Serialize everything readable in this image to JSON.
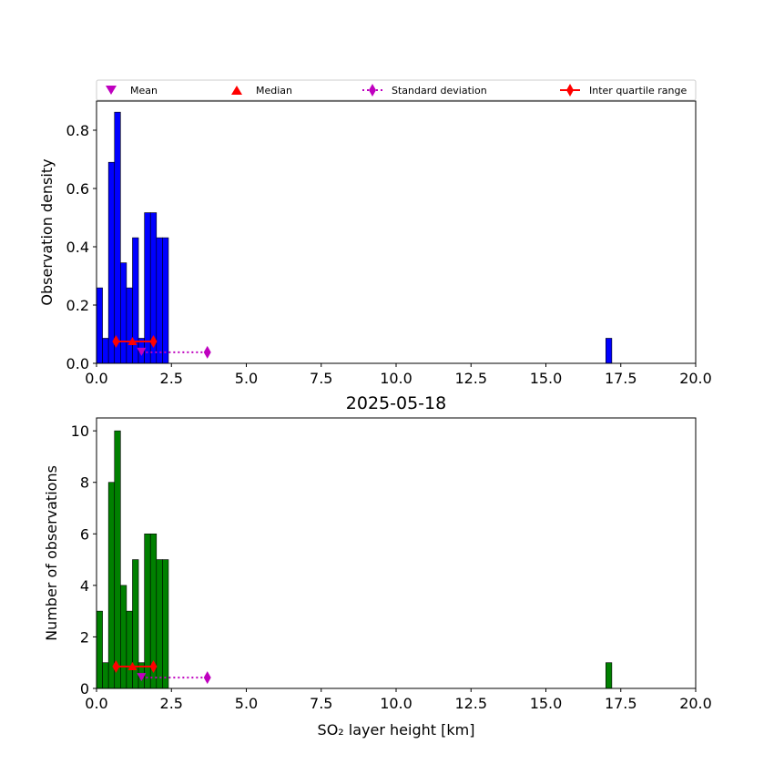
{
  "colors": {
    "top_bars": "#0000ff",
    "bottom_bars": "#008000",
    "bar_edge": "#000000",
    "mean": "#bf00bf",
    "median": "#ff0000",
    "std": "#bf00bf",
    "iqr": "#ff0000"
  },
  "legend": {
    "mean": "Mean",
    "median": "Median",
    "std": "Standard deviation",
    "iqr": "Inter quartile range"
  },
  "chart_data": [
    {
      "type": "bar",
      "panel": "density",
      "title": "",
      "xlabel": "",
      "ylabel": "Observation density",
      "xlim": [
        0,
        20
      ],
      "ylim": [
        0,
        0.9
      ],
      "xticks": [
        "0.0",
        "2.5",
        "5.0",
        "7.5",
        "10.0",
        "12.5",
        "15.0",
        "17.5",
        "20.0"
      ],
      "yticks": [
        "0.0",
        "0.2",
        "0.4",
        "0.6",
        "0.8"
      ],
      "bin_edges": [
        0.0,
        0.2,
        0.4,
        0.6,
        0.8,
        1.0,
        1.2,
        1.4,
        1.6,
        1.8,
        2.0,
        2.2,
        2.4
      ],
      "values": [
        0.259,
        0.086,
        0.69,
        0.862,
        0.345,
        0.259,
        0.431,
        0.086,
        0.517,
        0.517,
        0.431,
        0.431
      ],
      "outlier_bins": [
        {
          "x0": 17.0,
          "x1": 17.2,
          "value": 0.086
        }
      ],
      "stats": {
        "mean": 1.5,
        "median": 1.2,
        "q1": 0.65,
        "q3": 1.9,
        "std_end": 3.7
      },
      "stat_marker_y": {
        "iqr": 0.075,
        "std": 0.038
      },
      "grid": false,
      "legend_position": "top"
    },
    {
      "type": "bar",
      "panel": "count",
      "title": "2025-05-18",
      "xlabel": "SO₂ layer height [km]",
      "ylabel": "Number of observations",
      "xlim": [
        0,
        20
      ],
      "ylim": [
        0,
        10.5
      ],
      "xticks": [
        "0.0",
        "2.5",
        "5.0",
        "7.5",
        "10.0",
        "12.5",
        "15.0",
        "17.5",
        "20.0"
      ],
      "yticks": [
        "0",
        "2",
        "4",
        "6",
        "8",
        "10"
      ],
      "bin_edges": [
        0.0,
        0.2,
        0.4,
        0.6,
        0.8,
        1.0,
        1.2,
        1.4,
        1.6,
        1.8,
        2.0,
        2.2,
        2.4
      ],
      "values": [
        3,
        1,
        8,
        10,
        4,
        3,
        5,
        1,
        6,
        6,
        5,
        5
      ],
      "outlier_bins": [
        {
          "x0": 17.0,
          "x1": 17.2,
          "value": 1
        }
      ],
      "stats": {
        "mean": 1.5,
        "median": 1.2,
        "q1": 0.65,
        "q3": 1.9,
        "std_end": 3.7
      },
      "stat_marker_y": {
        "iqr": 0.85,
        "std": 0.42
      },
      "grid": false,
      "legend_position": "none"
    }
  ]
}
